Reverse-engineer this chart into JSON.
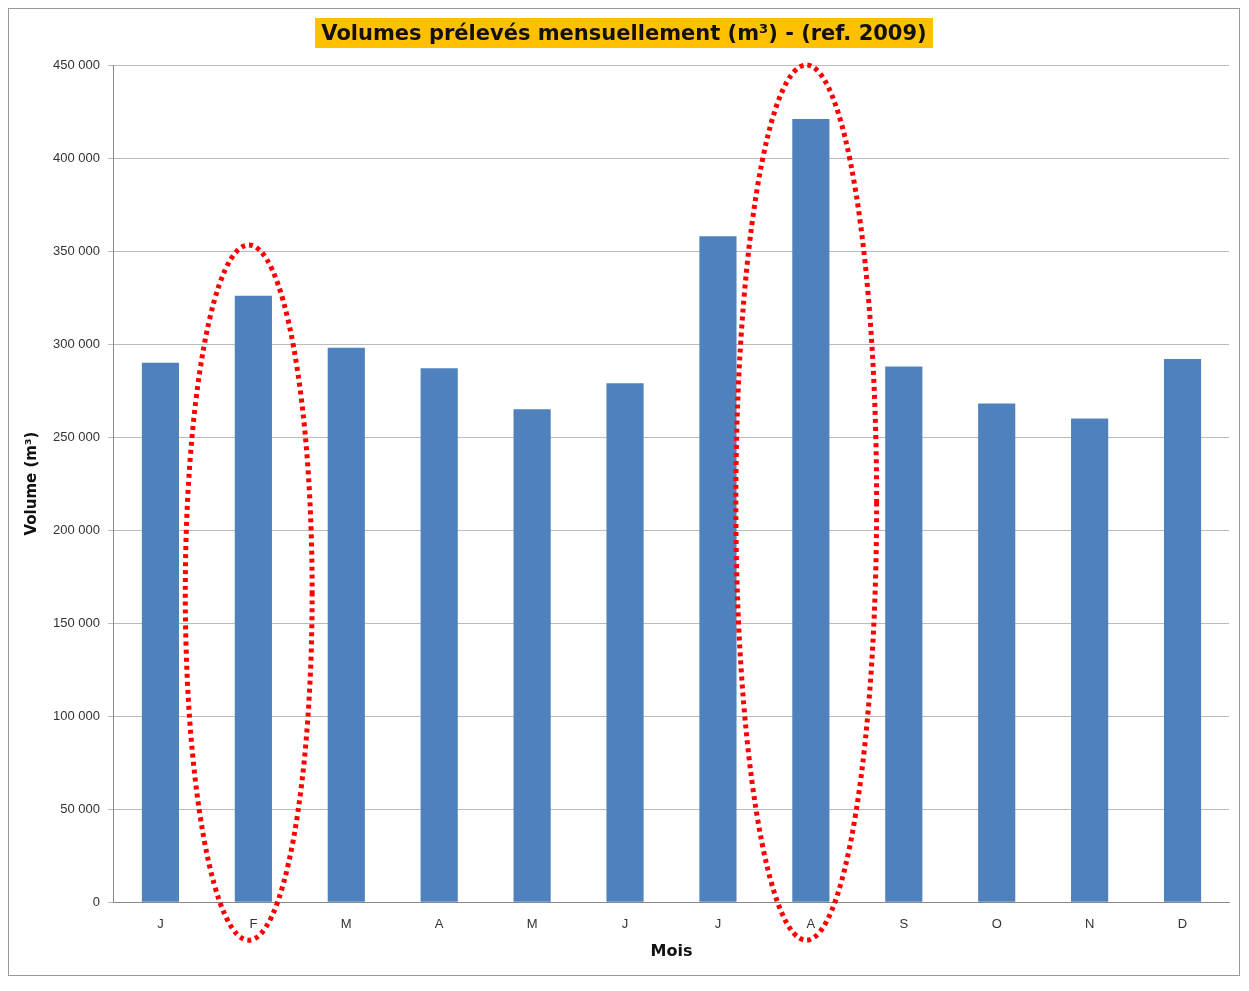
{
  "chart_data": {
    "type": "bar",
    "title": "Volumes prélevés mensuellement (m³) - (ref. 2009)",
    "xlabel": "Mois",
    "ylabel": "Volume (m³)",
    "categories": [
      "J",
      "F",
      "M",
      "A",
      "M",
      "J",
      "J",
      "A",
      "S",
      "O",
      "N",
      "D"
    ],
    "values": [
      290000,
      326000,
      298000,
      287000,
      265000,
      279000,
      358000,
      421000,
      288000,
      268000,
      260000,
      292000
    ],
    "color": "#4f81bd",
    "ylim": [
      0,
      450000
    ],
    "yticks": [
      0,
      50000,
      100000,
      150000,
      200000,
      250000,
      300000,
      350000,
      400000,
      450000
    ],
    "grid": "y",
    "legend": false
  }
}
